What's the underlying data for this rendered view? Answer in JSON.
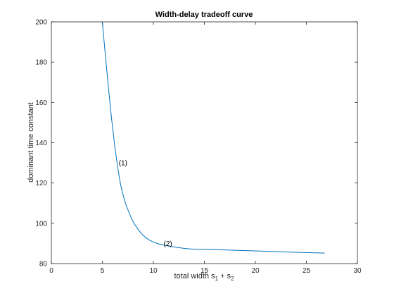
{
  "chart_data": {
    "type": "line",
    "title": "Width-delay tradeoff curve",
    "xlabel": {
      "main": "total width s",
      "sub1": "1",
      "mid": " + s",
      "sub2": "2"
    },
    "ylabel": "dominant time constant",
    "xlim": [
      0,
      30
    ],
    "ylim": [
      80,
      200
    ],
    "xticks": [
      0,
      5,
      10,
      15,
      20,
      25,
      30
    ],
    "yticks": [
      80,
      100,
      120,
      140,
      160,
      180,
      200
    ],
    "grid": false,
    "series": [
      {
        "color": "#0072bd",
        "x": [
          5.0,
          5.3,
          5.6,
          5.9,
          6.2,
          6.5,
          6.8,
          7.2,
          7.6,
          8.0,
          8.5,
          9.0,
          9.5,
          10.0,
          10.5,
          11.0,
          12.0,
          13.5,
          15.0,
          18.0,
          21.0,
          24.0,
          26.8
        ],
        "y": [
          200,
          183,
          167,
          152,
          139,
          128,
          119,
          111,
          105.5,
          101,
          97,
          94,
          92,
          90.7,
          89.8,
          89.2,
          88.3,
          87.3,
          87.1,
          86.6,
          86.1,
          85.6,
          85.2
        ]
      }
    ],
    "annotations": [
      {
        "text": "(1)",
        "x": 6.6,
        "y": 130
      },
      {
        "text": "(2)",
        "x": 11.0,
        "y": 90
      }
    ]
  }
}
